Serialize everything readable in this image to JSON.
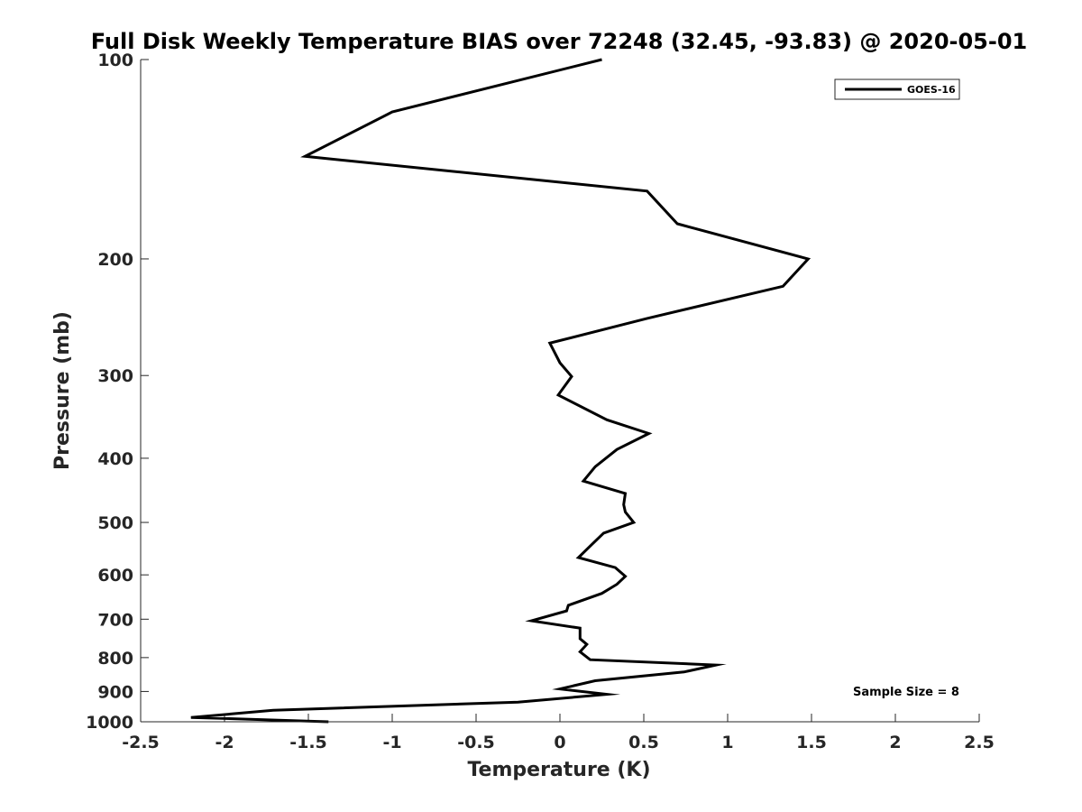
{
  "chart_data": {
    "type": "line",
    "title": "Full Disk Weekly Temperature BIAS over 72248 (32.45, -93.83) @ 2020-05-01",
    "xlabel": "Temperature (K)",
    "ylabel": "Pressure (mb)",
    "xlim": [
      -2.5,
      2.5
    ],
    "ylim": [
      100,
      1000
    ],
    "y_scale": "log",
    "y_reversed": true,
    "x_ticks": [
      "-2.5",
      "-2",
      "-1.5",
      "-1",
      "-0.5",
      "0",
      "0.5",
      "1",
      "1.5",
      "2",
      "2.5"
    ],
    "x_tick_values": [
      -2.5,
      -2,
      -1.5,
      -1,
      -0.5,
      0,
      0.5,
      1,
      1.5,
      2,
      2.5
    ],
    "y_ticks": [
      "100",
      "200",
      "300",
      "400",
      "500",
      "600",
      "700",
      "800",
      "900",
      "1000"
    ],
    "y_tick_values": [
      100,
      200,
      300,
      400,
      500,
      600,
      700,
      800,
      900,
      1000
    ],
    "grid": false,
    "legend": {
      "position": "top-right",
      "entries": [
        "GOES-16"
      ]
    },
    "annotation": "Sample Size = 8",
    "series": [
      {
        "name": "GOES-16",
        "color": "#000000",
        "points": [
          [
            0.25,
            100
          ],
          [
            -1.0,
            120
          ],
          [
            -1.52,
            140
          ],
          [
            0.52,
            158
          ],
          [
            0.7,
            177
          ],
          [
            1.48,
            200
          ],
          [
            1.33,
            220
          ],
          [
            0.52,
            246
          ],
          [
            -0.06,
            268
          ],
          [
            0.0,
            287
          ],
          [
            0.07,
            301
          ],
          [
            -0.01,
            321
          ],
          [
            0.28,
            350
          ],
          [
            0.53,
            367
          ],
          [
            0.34,
            388
          ],
          [
            0.21,
            412
          ],
          [
            0.14,
            433
          ],
          [
            0.39,
            452
          ],
          [
            0.38,
            470
          ],
          [
            0.39,
            482
          ],
          [
            0.44,
            500
          ],
          [
            0.26,
            519
          ],
          [
            0.19,
            540
          ],
          [
            0.11,
            565
          ],
          [
            0.33,
            585
          ],
          [
            0.39,
            603
          ],
          [
            0.34,
            620
          ],
          [
            0.25,
            640
          ],
          [
            0.05,
            667
          ],
          [
            0.04,
            680
          ],
          [
            -0.17,
            704
          ],
          [
            0.12,
            722
          ],
          [
            0.12,
            749
          ],
          [
            0.16,
            764
          ],
          [
            0.12,
            784
          ],
          [
            0.18,
            806
          ],
          [
            0.93,
            821
          ],
          [
            0.74,
            841
          ],
          [
            0.21,
            867
          ],
          [
            0.0,
            892
          ],
          [
            0.28,
            909
          ],
          [
            -0.25,
            934
          ],
          [
            -1.71,
            961
          ],
          [
            -2.2,
            985
          ],
          [
            -1.38,
            1000
          ]
        ]
      }
    ]
  }
}
